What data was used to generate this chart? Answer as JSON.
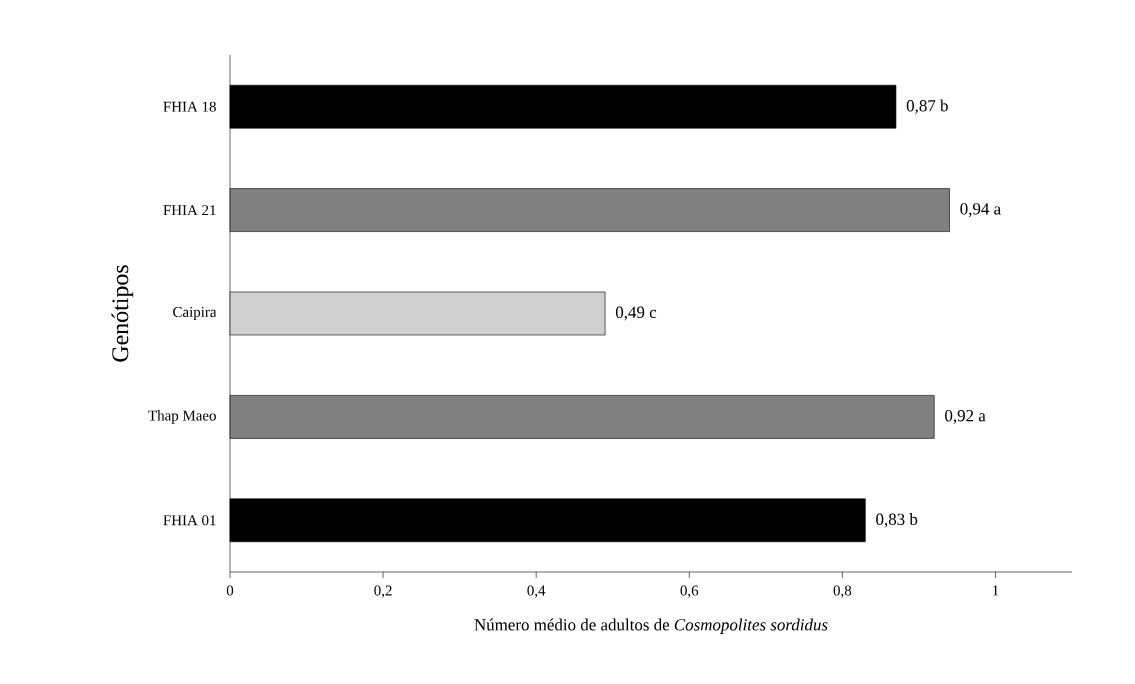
{
  "chart_data": {
    "type": "bar",
    "orientation": "horizontal",
    "categories": [
      "FHIA 18",
      "FHIA 21",
      "Caipira",
      "Thap  Maeo",
      "FHIA 01"
    ],
    "values": [
      0.87,
      0.94,
      0.49,
      0.92,
      0.83
    ],
    "colors": [
      "#000000",
      "#808080",
      "#d0d0d0",
      "#808080",
      "#000000"
    ],
    "value_labels": [
      "0,87  b",
      "0,94 a",
      "0,49 c",
      "0,92 a",
      "0,83 b"
    ],
    "xlabel": "Número médio de adultos de *Cosmopolites sordidus*",
    "ylabel": "Genótipos",
    "xlim": [
      0,
      1.1
    ],
    "xticks": [
      0,
      {
        "value": 0.2,
        "label": "0,2"
      },
      {
        "value": 0.4,
        "label": "0,4"
      },
      {
        "value": 0.6,
        "label": "0,6"
      },
      {
        "value": 0.8,
        "label": "0,8"
      },
      1
    ],
    "grid": false
  }
}
